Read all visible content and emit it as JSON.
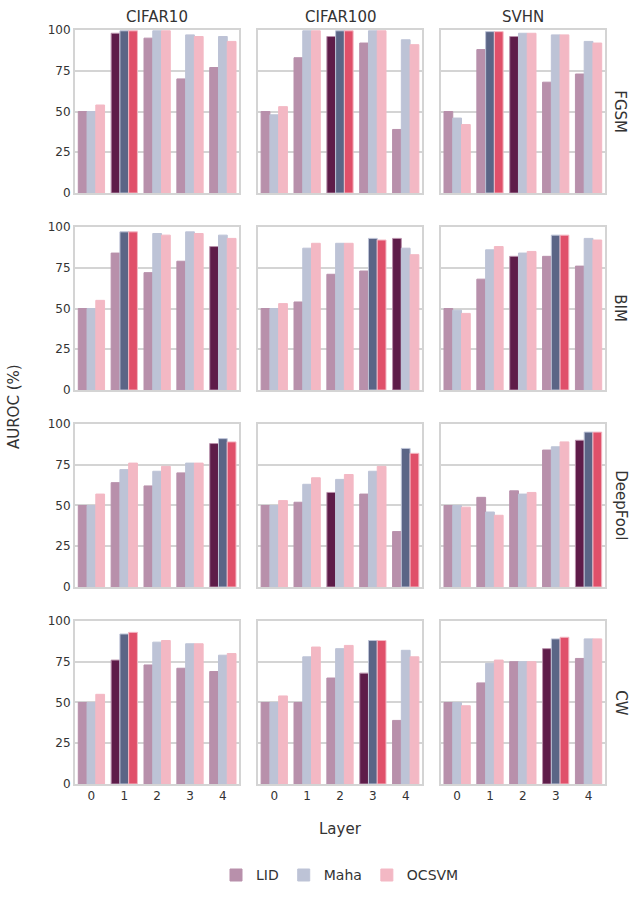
{
  "chart_data": {
    "type": "bar",
    "x_label": "Layer",
    "y_label": "AUROC (%)",
    "column_titles": [
      "CIFAR10",
      "CIFAR100",
      "SVHN"
    ],
    "row_titles": [
      "FGSM",
      "BIM",
      "DeepFool",
      "CW"
    ],
    "categories": [
      0,
      1,
      2,
      3,
      4
    ],
    "ylim": [
      0,
      100
    ],
    "yticks": [
      0,
      25,
      50,
      75,
      100
    ],
    "grid": true,
    "legend": "bottom",
    "series": [
      {
        "name": "LID",
        "color": "#b890ab"
      },
      {
        "name": "Maha",
        "color": "#bdc3d6"
      },
      {
        "name": "OCSVM",
        "color": "#f3b8c4"
      }
    ],
    "panels": [
      {
        "row": "FGSM",
        "column": "CIFAR10",
        "series": [
          {
            "name": "LID",
            "values": [
              50,
              98,
              95,
              70,
              77
            ],
            "colors": [
              "#b890ab",
              "#5e1c49",
              "#b890ab",
              "#b890ab",
              "#b890ab"
            ]
          },
          {
            "name": "Maha",
            "values": [
              50,
              99.5,
              99.5,
              97,
              96
            ],
            "colors": [
              "#bdc3d6",
              "#5b6586",
              "#bdc3d6",
              "#bdc3d6",
              "#bdc3d6"
            ]
          },
          {
            "name": "OCSVM",
            "values": [
              54,
              99.5,
              99.5,
              96,
              93
            ],
            "colors": [
              "#f3b8c4",
              "#e0506a",
              "#f3b8c4",
              "#f3b8c4",
              "#f3b8c4"
            ]
          }
        ]
      },
      {
        "row": "FGSM",
        "column": "CIFAR100",
        "series": [
          {
            "name": "LID",
            "values": [
              50,
              83,
              96,
              92,
              39
            ],
            "colors": [
              "#b890ab",
              "#b890ab",
              "#5e1c49",
              "#b890ab",
              "#b890ab"
            ]
          },
          {
            "name": "Maha",
            "values": [
              48,
              99.5,
              99.5,
              99.5,
              94
            ],
            "colors": [
              "#bdc3d6",
              "#bdc3d6",
              "#5b6586",
              "#bdc3d6",
              "#bdc3d6"
            ]
          },
          {
            "name": "OCSVM",
            "values": [
              53,
              99.5,
              99.5,
              99.5,
              91
            ],
            "colors": [
              "#f3b8c4",
              "#f3b8c4",
              "#e0506a",
              "#f3b8c4",
              "#f3b8c4"
            ]
          }
        ]
      },
      {
        "row": "FGSM",
        "column": "SVHN",
        "series": [
          {
            "name": "LID",
            "values": [
              50,
              88,
              96,
              68,
              73
            ],
            "colors": [
              "#b890ab",
              "#b890ab",
              "#5e1c49",
              "#b890ab",
              "#b890ab"
            ]
          },
          {
            "name": "Maha",
            "values": [
              46,
              99,
              98,
              97,
              93
            ],
            "colors": [
              "#bdc3d6",
              "#5b6586",
              "#bdc3d6",
              "#bdc3d6",
              "#bdc3d6"
            ]
          },
          {
            "name": "OCSVM",
            "values": [
              42,
              99,
              98,
              97,
              92
            ],
            "colors": [
              "#f3b8c4",
              "#e0506a",
              "#f3b8c4",
              "#f3b8c4",
              "#f3b8c4"
            ]
          }
        ]
      },
      {
        "row": "BIM",
        "column": "CIFAR10",
        "series": [
          {
            "name": "LID",
            "values": [
              50,
              84,
              72,
              79,
              88
            ],
            "colors": [
              "#b890ab",
              "#b890ab",
              "#b890ab",
              "#b890ab",
              "#5e1c49"
            ]
          },
          {
            "name": "Maha",
            "values": [
              50,
              97,
              96,
              97,
              95
            ],
            "colors": [
              "#bdc3d6",
              "#5b6586",
              "#bdc3d6",
              "#bdc3d6",
              "#bdc3d6"
            ]
          },
          {
            "name": "OCSVM",
            "values": [
              55,
              97,
              95,
              96,
              93
            ],
            "colors": [
              "#f3b8c4",
              "#e0506a",
              "#f3b8c4",
              "#f3b8c4",
              "#f3b8c4"
            ]
          }
        ]
      },
      {
        "row": "BIM",
        "column": "CIFAR100",
        "series": [
          {
            "name": "LID",
            "values": [
              50,
              54,
              71,
              73,
              93
            ],
            "colors": [
              "#b890ab",
              "#b890ab",
              "#b890ab",
              "#b890ab",
              "#5e1c49"
            ]
          },
          {
            "name": "Maha",
            "values": [
              50,
              87,
              90,
              93,
              87
            ],
            "colors": [
              "#bdc3d6",
              "#bdc3d6",
              "#bdc3d6",
              "#5b6586",
              "#bdc3d6"
            ]
          },
          {
            "name": "OCSVM",
            "values": [
              53,
              90,
              90,
              92,
              83
            ],
            "colors": [
              "#f3b8c4",
              "#f3b8c4",
              "#f3b8c4",
              "#e0506a",
              "#f3b8c4"
            ]
          }
        ]
      },
      {
        "row": "BIM",
        "column": "SVHN",
        "series": [
          {
            "name": "LID",
            "values": [
              50,
              68,
              82,
              82,
              76
            ],
            "colors": [
              "#b890ab",
              "#b890ab",
              "#5e1c49",
              "#b890ab",
              "#b890ab"
            ]
          },
          {
            "name": "Maha",
            "values": [
              49,
              86,
              84,
              95,
              93
            ],
            "colors": [
              "#bdc3d6",
              "#bdc3d6",
              "#bdc3d6",
              "#5b6586",
              "#bdc3d6"
            ]
          },
          {
            "name": "OCSVM",
            "values": [
              47,
              88,
              85,
              95,
              92
            ],
            "colors": [
              "#f3b8c4",
              "#f3b8c4",
              "#f3b8c4",
              "#e0506a",
              "#f3b8c4"
            ]
          }
        ]
      },
      {
        "row": "DeepFool",
        "column": "CIFAR10",
        "series": [
          {
            "name": "LID",
            "values": [
              50,
              64,
              62,
              70,
              88
            ],
            "colors": [
              "#b890ab",
              "#b890ab",
              "#b890ab",
              "#b890ab",
              "#5e1c49"
            ]
          },
          {
            "name": "Maha",
            "values": [
              50,
              72,
              71,
              76,
              91
            ],
            "colors": [
              "#bdc3d6",
              "#bdc3d6",
              "#bdc3d6",
              "#bdc3d6",
              "#5b6586"
            ]
          },
          {
            "name": "OCSVM",
            "values": [
              57,
              76,
              74,
              76,
              89
            ],
            "colors": [
              "#f3b8c4",
              "#f3b8c4",
              "#f3b8c4",
              "#f3b8c4",
              "#e0506a"
            ]
          }
        ]
      },
      {
        "row": "DeepFool",
        "column": "CIFAR100",
        "series": [
          {
            "name": "LID",
            "values": [
              50,
              52,
              58,
              57,
              34
            ],
            "colors": [
              "#b890ab",
              "#b890ab",
              "#5e1c49",
              "#b890ab",
              "#b890ab"
            ]
          },
          {
            "name": "Maha",
            "values": [
              50,
              63,
              66,
              71,
              85
            ],
            "colors": [
              "#bdc3d6",
              "#bdc3d6",
              "#bdc3d6",
              "#bdc3d6",
              "#5b6586"
            ]
          },
          {
            "name": "OCSVM",
            "values": [
              53,
              67,
              69,
              74,
              82
            ],
            "colors": [
              "#f3b8c4",
              "#f3b8c4",
              "#f3b8c4",
              "#f3b8c4",
              "#e0506a"
            ]
          }
        ]
      },
      {
        "row": "DeepFool",
        "column": "SVHN",
        "series": [
          {
            "name": "LID",
            "values": [
              50,
              55,
              59,
              84,
              90
            ],
            "colors": [
              "#b890ab",
              "#b890ab",
              "#b890ab",
              "#b890ab",
              "#5e1c49"
            ]
          },
          {
            "name": "Maha",
            "values": [
              50,
              46,
              57,
              86,
              95
            ],
            "colors": [
              "#bdc3d6",
              "#bdc3d6",
              "#bdc3d6",
              "#bdc3d6",
              "#5b6586"
            ]
          },
          {
            "name": "OCSVM",
            "values": [
              49,
              44,
              58,
              89,
              95
            ],
            "colors": [
              "#f3b8c4",
              "#f3b8c4",
              "#f3b8c4",
              "#f3b8c4",
              "#e0506a"
            ]
          }
        ]
      },
      {
        "row": "CW",
        "column": "CIFAR10",
        "series": [
          {
            "name": "LID",
            "values": [
              50,
              76,
              73,
              71,
              69
            ],
            "colors": [
              "#b890ab",
              "#5e1c49",
              "#b890ab",
              "#b890ab",
              "#b890ab"
            ]
          },
          {
            "name": "Maha",
            "values": [
              50,
              92,
              87,
              86,
              79
            ],
            "colors": [
              "#bdc3d6",
              "#5b6586",
              "#bdc3d6",
              "#bdc3d6",
              "#bdc3d6"
            ]
          },
          {
            "name": "OCSVM",
            "values": [
              55,
              93,
              88,
              86,
              80
            ],
            "colors": [
              "#f3b8c4",
              "#e0506a",
              "#f3b8c4",
              "#f3b8c4",
              "#f3b8c4"
            ]
          }
        ]
      },
      {
        "row": "CW",
        "column": "CIFAR100",
        "series": [
          {
            "name": "LID",
            "values": [
              50,
              50,
              65,
              68,
              39
            ],
            "colors": [
              "#b890ab",
              "#b890ab",
              "#b890ab",
              "#5e1c49",
              "#b890ab"
            ]
          },
          {
            "name": "Maha",
            "values": [
              50,
              78,
              83,
              88,
              82
            ],
            "colors": [
              "#bdc3d6",
              "#bdc3d6",
              "#bdc3d6",
              "#5b6586",
              "#bdc3d6"
            ]
          },
          {
            "name": "OCSVM",
            "values": [
              54,
              84,
              85,
              88,
              78
            ],
            "colors": [
              "#f3b8c4",
              "#f3b8c4",
              "#f3b8c4",
              "#e0506a",
              "#f3b8c4"
            ]
          }
        ]
      },
      {
        "row": "CW",
        "column": "SVHN",
        "series": [
          {
            "name": "LID",
            "values": [
              50,
              62,
              75,
              83,
              77
            ],
            "colors": [
              "#b890ab",
              "#b890ab",
              "#b890ab",
              "#5e1c49",
              "#b890ab"
            ]
          },
          {
            "name": "Maha",
            "values": [
              50,
              74,
              75,
              89,
              89
            ],
            "colors": [
              "#bdc3d6",
              "#bdc3d6",
              "#bdc3d6",
              "#5b6586",
              "#bdc3d6"
            ]
          },
          {
            "name": "OCSVM",
            "values": [
              48,
              76,
              75,
              90,
              89
            ],
            "colors": [
              "#f3b8c4",
              "#f3b8c4",
              "#f3b8c4",
              "#e0506a",
              "#f3b8c4"
            ]
          }
        ]
      }
    ]
  }
}
